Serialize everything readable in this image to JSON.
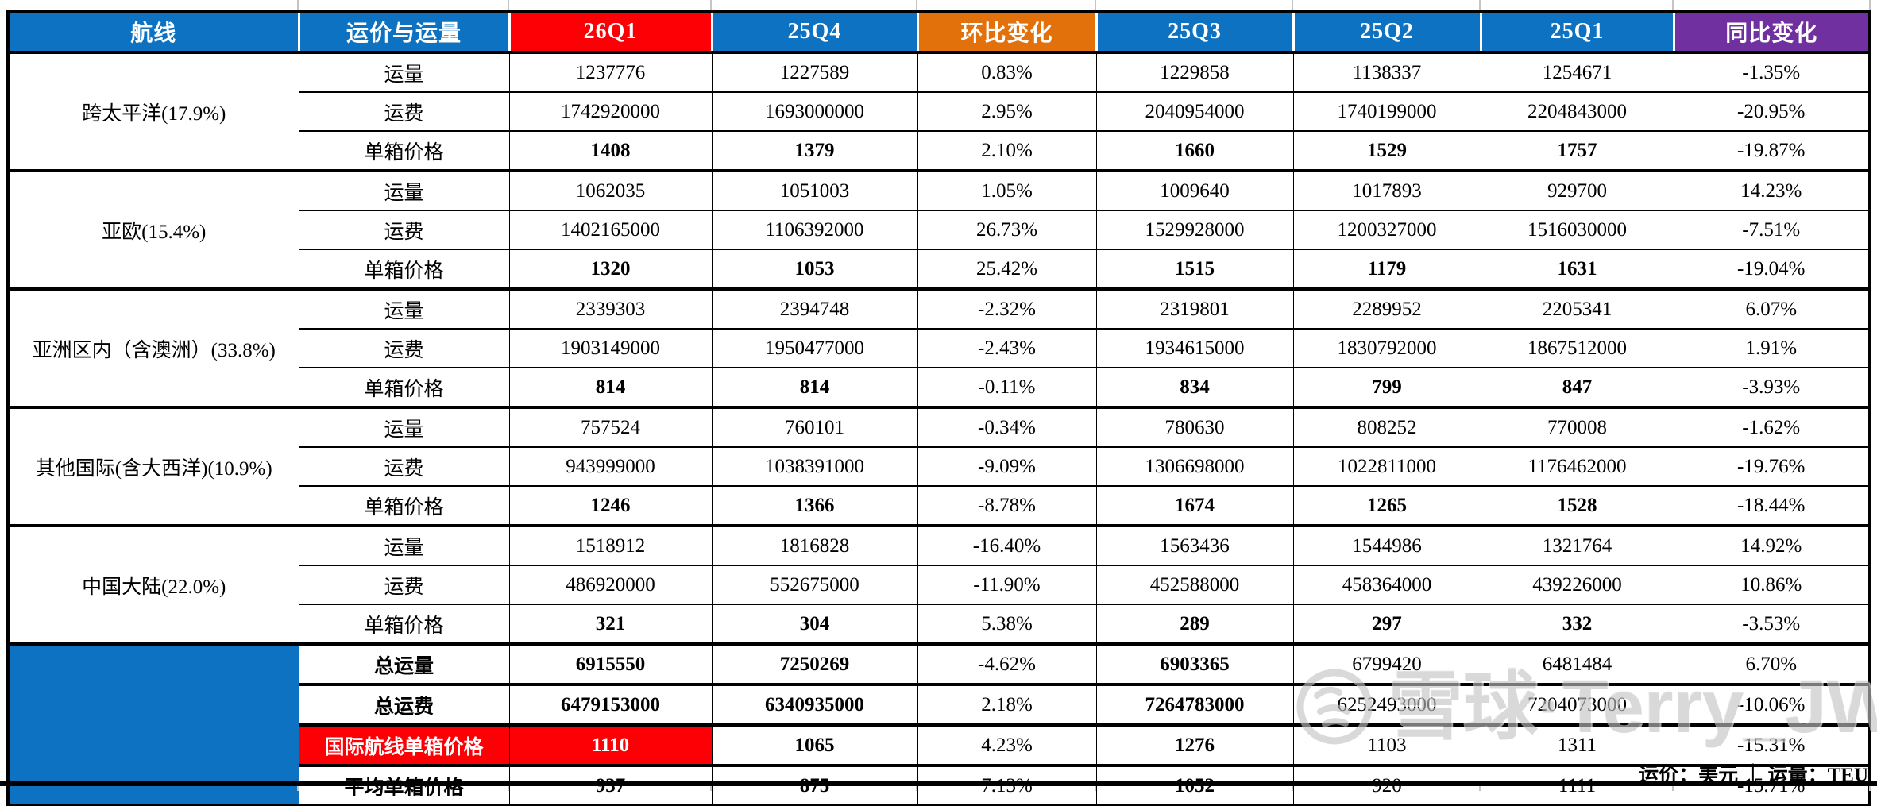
{
  "colors": {
    "header_blue": "#0d72c2",
    "highlight_red": "#fc0006",
    "qoq_orange": "#e2700b",
    "yoy_purple": "#7030a0",
    "border_black": "#000000",
    "watermark_gray": "#c3c3c3"
  },
  "chart_data": {
    "type": "table",
    "title": "",
    "columns": [
      "航线",
      "运价与运量",
      "26Q1",
      "25Q4",
      "环比变化",
      "25Q3",
      "25Q2",
      "25Q1",
      "同比变化"
    ],
    "groups": [
      {
        "route": "跨太平洋(17.9%)",
        "rows": [
          {
            "metric": "运量",
            "values": [
              "1237776",
              "1227589",
              "0.83%",
              "1229858",
              "1138337",
              "1254671",
              "-1.35%"
            ],
            "bold_cols": []
          },
          {
            "metric": "运费",
            "values": [
              "1742920000",
              "1693000000",
              "2.95%",
              "2040954000",
              "1740199000",
              "2204843000",
              "-20.95%"
            ],
            "bold_cols": []
          },
          {
            "metric": "单箱价格",
            "values": [
              "1408",
              "1379",
              "2.10%",
              "1660",
              "1529",
              "1757",
              "-19.87%"
            ],
            "bold_cols": [
              0,
              1,
              3,
              4,
              5
            ]
          }
        ]
      },
      {
        "route": "亚欧(15.4%)",
        "rows": [
          {
            "metric": "运量",
            "values": [
              "1062035",
              "1051003",
              "1.05%",
              "1009640",
              "1017893",
              "929700",
              "14.23%"
            ],
            "bold_cols": []
          },
          {
            "metric": "运费",
            "values": [
              "1402165000",
              "1106392000",
              "26.73%",
              "1529928000",
              "1200327000",
              "1516030000",
              "-7.51%"
            ],
            "bold_cols": []
          },
          {
            "metric": "单箱价格",
            "values": [
              "1320",
              "1053",
              "25.42%",
              "1515",
              "1179",
              "1631",
              "-19.04%"
            ],
            "bold_cols": [
              0,
              1,
              3,
              4,
              5
            ]
          }
        ]
      },
      {
        "route": "亚洲区内（含澳洲）(33.8%)",
        "rows": [
          {
            "metric": "运量",
            "values": [
              "2339303",
              "2394748",
              "-2.32%",
              "2319801",
              "2289952",
              "2205341",
              "6.07%"
            ],
            "bold_cols": []
          },
          {
            "metric": "运费",
            "values": [
              "1903149000",
              "1950477000",
              "-2.43%",
              "1934615000",
              "1830792000",
              "1867512000",
              "1.91%"
            ],
            "bold_cols": []
          },
          {
            "metric": "单箱价格",
            "values": [
              "814",
              "814",
              "-0.11%",
              "834",
              "799",
              "847",
              "-3.93%"
            ],
            "bold_cols": [
              0,
              1,
              3,
              4,
              5
            ]
          }
        ]
      },
      {
        "route": "其他国际(含大西洋)(10.9%)",
        "rows": [
          {
            "metric": "运量",
            "values": [
              "757524",
              "760101",
              "-0.34%",
              "780630",
              "808252",
              "770008",
              "-1.62%"
            ],
            "bold_cols": []
          },
          {
            "metric": "运费",
            "values": [
              "943999000",
              "1038391000",
              "-9.09%",
              "1306698000",
              "1022811000",
              "1176462000",
              "-19.76%"
            ],
            "bold_cols": []
          },
          {
            "metric": "单箱价格",
            "values": [
              "1246",
              "1366",
              "-8.78%",
              "1674",
              "1265",
              "1528",
              "-18.44%"
            ],
            "bold_cols": [
              0,
              1,
              3,
              4,
              5
            ]
          }
        ]
      },
      {
        "route": "中国大陆(22.0%)",
        "rows": [
          {
            "metric": "运量",
            "values": [
              "1518912",
              "1816828",
              "-16.40%",
              "1563436",
              "1544986",
              "1321764",
              "14.92%"
            ],
            "bold_cols": []
          },
          {
            "metric": "运费",
            "values": [
              "486920000",
              "552675000",
              "-11.90%",
              "452588000",
              "458364000",
              "439226000",
              "10.86%"
            ],
            "bold_cols": []
          },
          {
            "metric": "单箱价格",
            "values": [
              "321",
              "304",
              "5.38%",
              "289",
              "297",
              "332",
              "-3.53%"
            ],
            "bold_cols": [
              0,
              1,
              3,
              4,
              5
            ]
          }
        ]
      }
    ],
    "summary_rows": [
      {
        "metric": "总运量",
        "values": [
          "6915550",
          "7250269",
          "-4.62%",
          "6903365",
          "6799420",
          "6481484",
          "6.70%"
        ],
        "bold_cols": [
          0,
          1,
          3
        ],
        "highlight": false
      },
      {
        "metric": "总运费",
        "values": [
          "6479153000",
          "6340935000",
          "2.18%",
          "7264783000",
          "6252493000",
          "7204073000",
          "-10.06%"
        ],
        "bold_cols": [
          0,
          1,
          3
        ],
        "highlight": false
      },
      {
        "metric": "国际航线单箱价格",
        "values": [
          "1110",
          "1065",
          "4.23%",
          "1276",
          "1103",
          "1311",
          "-15.31%"
        ],
        "bold_cols": [
          0,
          1,
          3
        ],
        "highlight": true
      },
      {
        "metric": "平均单箱价格",
        "values": [
          "937",
          "875",
          "7.13%",
          "1052",
          "920",
          "1111",
          "-15.71%"
        ],
        "bold_cols": [
          0,
          1,
          3
        ],
        "highlight": false
      }
    ],
    "notes": "运价：美元 ｜ 运量：TEU"
  },
  "watermark": {
    "text": "雪球·Terry_JW",
    "logo": "snowball-logo"
  }
}
